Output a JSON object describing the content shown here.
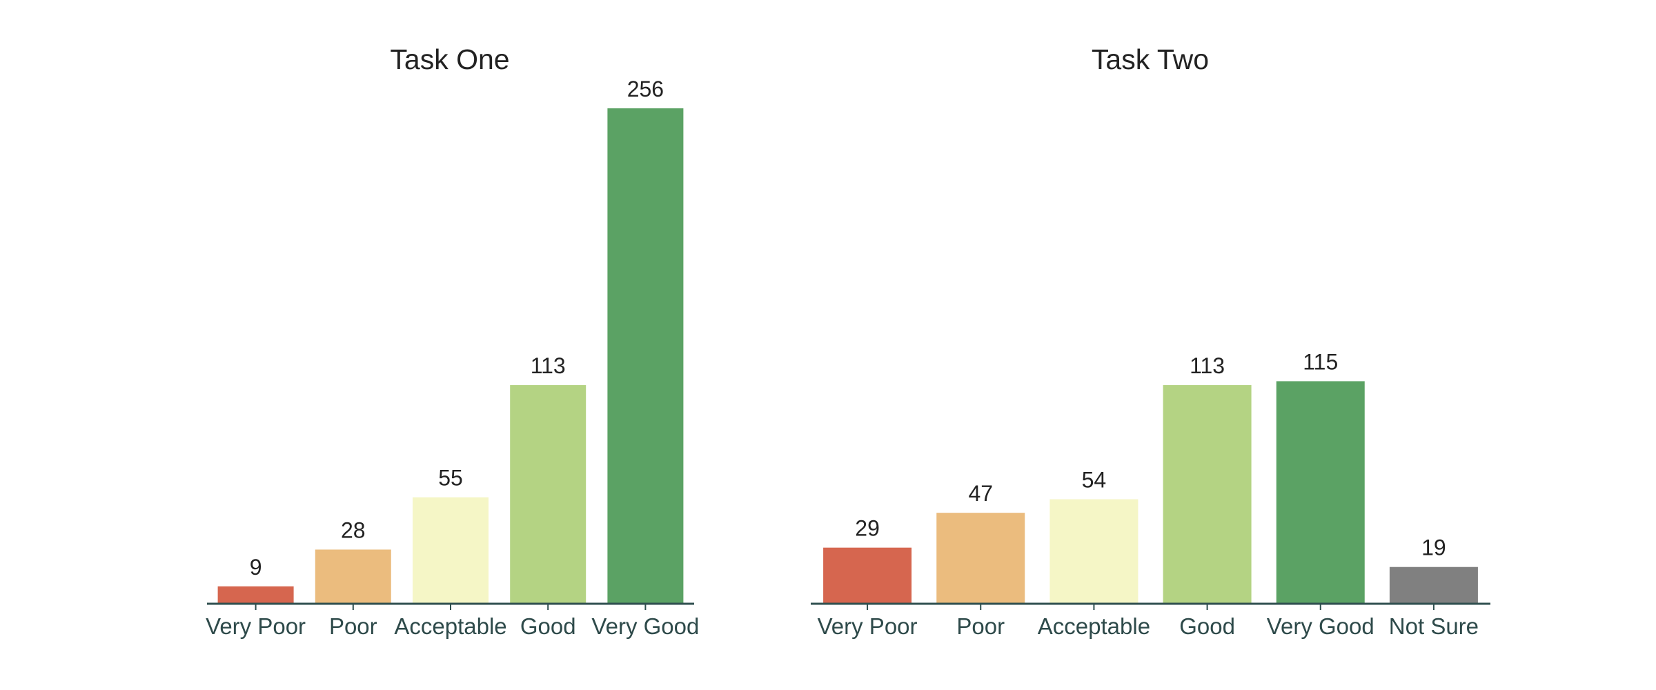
{
  "chart_data": [
    {
      "type": "bar",
      "title": "Task One",
      "xlabel": "",
      "ylabel": "",
      "categories": [
        "Very Poor",
        "Poor",
        "Acceptable",
        "Good",
        "Very Good"
      ],
      "values": [
        9,
        28,
        55,
        113,
        256
      ],
      "colors": [
        "#d6664f",
        "#ebbc7e",
        "#f5f6c6",
        "#b4d383",
        "#5ba264"
      ],
      "ylim": [
        0,
        256
      ],
      "grid": false,
      "legend": "none"
    },
    {
      "type": "bar",
      "title": "Task Two",
      "xlabel": "",
      "ylabel": "",
      "categories": [
        "Very Poor",
        "Poor",
        "Acceptable",
        "Good",
        "Very Good",
        "Not Sure"
      ],
      "values": [
        29,
        47,
        54,
        113,
        115,
        19
      ],
      "colors": [
        "#d6664f",
        "#ebbc7e",
        "#f5f6c6",
        "#b4d383",
        "#5ba264",
        "#808080"
      ],
      "ylim": [
        0,
        256
      ],
      "grid": false,
      "legend": "none"
    }
  ]
}
